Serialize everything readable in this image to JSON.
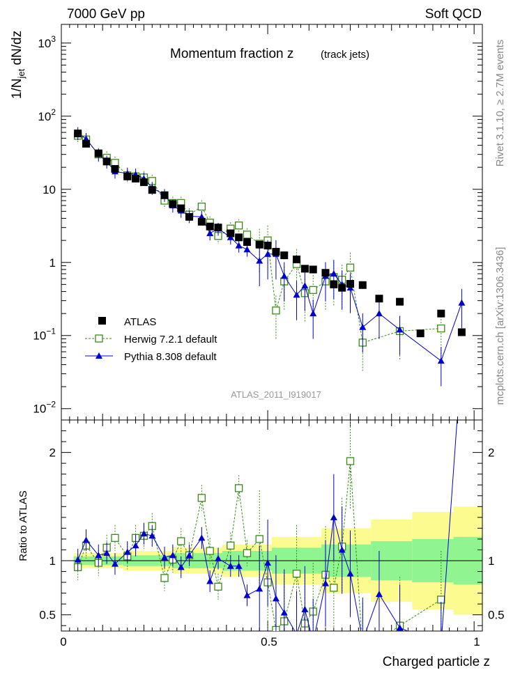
{
  "header": {
    "left": "7000 GeV pp",
    "right": "Soft QCD",
    "title": "Momentum fraction z",
    "title_note": "(track jets)",
    "watermark": "ATLAS_2011_I919017",
    "side_rivet": "Rivet 3.1.10, ≥ 2.7M events",
    "side_source": "mcplots.cern.ch [arXiv:1306.3436]"
  },
  "colors": {
    "atlas": "#000000",
    "herwig": "#3b8a17",
    "pythia": "#0000cc",
    "band_inner": "#90f590",
    "band_outer": "#fbfb90"
  },
  "chart_data": [
    {
      "type": "scatter",
      "title": "Momentum fraction z",
      "xlabel": "Charged particle z",
      "ylabel": "1/N_jet dN/dz",
      "yscale": "log",
      "xlim": [
        0,
        1.02
      ],
      "ylim": [
        0.007,
        1800
      ],
      "x_ticks": [
        "0",
        "0.5",
        "1"
      ],
      "y_ticks": [
        "10^-2",
        "10^-1",
        "1",
        "10",
        "10^2",
        "10^3"
      ],
      "legend_position": "lower-left",
      "x": [
        0.04,
        0.06,
        0.09,
        0.11,
        0.13,
        0.16,
        0.18,
        0.2,
        0.22,
        0.25,
        0.27,
        0.29,
        0.31,
        0.34,
        0.36,
        0.38,
        0.41,
        0.43,
        0.45,
        0.48,
        0.5,
        0.52,
        0.54,
        0.57,
        0.59,
        0.61,
        0.64,
        0.66,
        0.68,
        0.7,
        0.73,
        0.77,
        0.82,
        0.87,
        0.92,
        0.97
      ],
      "series": [
        {
          "name": "ATLAS",
          "marker": "filled-square",
          "values": [
            58,
            42,
            31,
            24,
            19,
            15,
            14,
            12.5,
            9.8,
            8.3,
            6.3,
            5.5,
            4.2,
            3.6,
            3.1,
            3.0,
            2.5,
            2.2,
            1.9,
            1.75,
            1.7,
            1.4,
            1.25,
            1.1,
            0.82,
            0.8,
            0.72,
            0.5,
            0.45,
            0.51,
            0.49,
            0.32,
            0.29,
            0.107,
            0.2,
            0.111
          ]
        },
        {
          "name": "Herwig 7.2.1 default",
          "marker": "open-square",
          "line": "dashed",
          "values": [
            54,
            48,
            30,
            27,
            23,
            15.5,
            15,
            14.5,
            13,
            7,
            6.5,
            6.5,
            4.5,
            5.8,
            3.5,
            2.3,
            2.9,
            3.2,
            2.4,
            1.8,
            2.0,
            0.22,
            0.55,
            0.95,
            0.38,
            0.42,
            0.55,
            0.63,
            0.58,
            0.85,
            0.08,
            null,
            0.115,
            null,
            0.125,
            null
          ]
        },
        {
          "name": "Pythia 8.308 default",
          "marker": "filled-triangle",
          "line": "solid",
          "values": [
            59,
            49,
            30,
            24,
            17.5,
            16.5,
            16,
            14,
            10.5,
            8.4,
            6.0,
            5.1,
            4.3,
            4.2,
            2.5,
            2.9,
            2.2,
            1.7,
            1.5,
            1.05,
            1.3,
            1.3,
            0.65,
            0.36,
            0.48,
            0.2,
            0.65,
            0.7,
            0.5,
            0.45,
            0.13,
            0.2,
            0.12,
            null,
            0.045,
            0.28
          ]
        }
      ]
    },
    {
      "type": "line",
      "ylabel": "Ratio to ATLAS",
      "xlabel": "Charged particle z",
      "xlim": [
        0,
        1.02
      ],
      "ylim": [
        0.35,
        2.3
      ],
      "y_ticks": [
        "0.5",
        "1",
        "2"
      ],
      "reference_line": 1,
      "x": [
        0.04,
        0.06,
        0.09,
        0.11,
        0.13,
        0.16,
        0.18,
        0.2,
        0.22,
        0.25,
        0.27,
        0.29,
        0.31,
        0.34,
        0.36,
        0.38,
        0.41,
        0.43,
        0.45,
        0.48,
        0.5,
        0.52,
        0.54,
        0.57,
        0.59,
        0.61,
        0.64,
        0.66,
        0.68,
        0.7,
        0.73,
        0.77,
        0.82,
        0.87,
        0.92,
        0.97
      ],
      "series": [
        {
          "name": "Herwig 7.2.1 default",
          "values": [
            0.94,
            1.14,
            0.98,
            1.12,
            1.21,
            1.04,
            1.21,
            1.23,
            1.32,
            0.84,
            1.01,
            1.18,
            1.05,
            1.58,
            1.09,
            0.76,
            1.14,
            1.67,
            1.07,
            1.2,
            0.8,
            0.36,
            0.44,
            0.88,
            0.42,
            0.53,
            0.87,
            0.75,
            1.13,
            1.92,
            0.16,
            null,
            0.4,
            null,
            0.64,
            null
          ]
        },
        {
          "name": "Pythia 8.308 default",
          "values": [
            1.01,
            1.19,
            1.05,
            1.07,
            0.97,
            1.08,
            1.14,
            1.25,
            1.23,
            1.03,
            1.05,
            0.94,
            1.05,
            1.21,
            0.81,
            1.02,
            0.95,
            0.95,
            0.68,
            0.74,
            0.98,
            0.65,
            0.52,
            0.32,
            0.55,
            0.25,
            0.79,
            1.4,
            1.1,
            0.88,
            0.26,
            0.69,
            0.38,
            null,
            0.22,
            2.9
          ]
        }
      ],
      "uncertainty_band": {
        "x_edges": [
          0.03,
          0.15,
          0.27,
          0.39,
          0.51,
          0.63,
          0.75,
          0.85,
          0.95,
          1.02
        ],
        "inner": [
          0.04,
          0.05,
          0.07,
          0.09,
          0.12,
          0.15,
          0.18,
          0.2,
          0.22
        ],
        "outer": [
          0.07,
          0.09,
          0.12,
          0.15,
          0.22,
          0.3,
          0.38,
          0.45,
          0.5
        ]
      }
    }
  ]
}
